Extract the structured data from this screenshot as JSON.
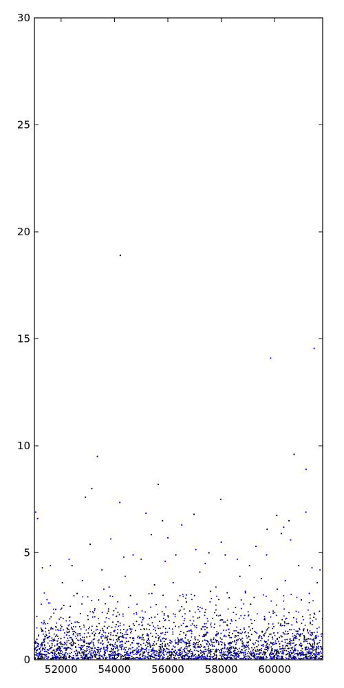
{
  "chart_data": {
    "type": "scatter",
    "title": "",
    "xlabel": "",
    "ylabel": "",
    "xlim": [
      51000,
      61800
    ],
    "ylim": [
      0,
      30
    ],
    "grid": false,
    "xticks": [
      52000,
      54000,
      56000,
      58000,
      60000
    ],
    "xtick_labels": [
      "52000",
      "54000",
      "56000",
      "58000",
      "60000"
    ],
    "yticks": [
      0,
      5,
      10,
      15,
      20,
      25,
      30
    ],
    "ytick_labels": [
      "0",
      "5",
      "10",
      "15",
      "20",
      "25",
      "30"
    ],
    "series": [
      {
        "color": "#000000",
        "points": [
          [
            54220,
            18.9
          ],
          [
            55640,
            8.2
          ],
          [
            53150,
            8.0
          ],
          [
            57980,
            7.5
          ],
          [
            52910,
            7.6
          ],
          [
            56980,
            6.8
          ],
          [
            60080,
            6.75
          ],
          [
            60730,
            9.6
          ],
          [
            60540,
            6.5
          ],
          [
            59720,
            6.1
          ],
          [
            55800,
            6.5
          ],
          [
            55380,
            5.85
          ],
          [
            53090,
            5.4
          ],
          [
            54350,
            4.8
          ],
          [
            57540,
            5.0
          ],
          [
            58150,
            4.9
          ],
          [
            59060,
            4.4
          ],
          [
            60250,
            5.9
          ],
          [
            61400,
            4.3
          ],
          [
            51300,
            4.3
          ],
          [
            52410,
            4.4
          ],
          [
            53530,
            4.2
          ],
          [
            55000,
            4.7
          ],
          [
            56300,
            4.9
          ],
          [
            57200,
            4.1
          ],
          [
            58700,
            3.9
          ],
          [
            59500,
            3.8
          ],
          [
            60900,
            4.4
          ],
          [
            61600,
            3.6
          ],
          [
            52050,
            3.6
          ],
          [
            52600,
            3.1
          ],
          [
            53800,
            3.4
          ],
          [
            54600,
            3.0
          ],
          [
            55500,
            3.5
          ],
          [
            56700,
            2.7
          ],
          [
            57600,
            3.2
          ],
          [
            58300,
            2.9
          ],
          [
            59100,
            2.6
          ],
          [
            60100,
            3.3
          ],
          [
            61000,
            2.8
          ]
        ]
      },
      {
        "color": "#0000ff",
        "points": [
          [
            59850,
            14.1
          ],
          [
            61480,
            14.55
          ],
          [
            61180,
            8.9
          ],
          [
            53360,
            9.5
          ],
          [
            54200,
            7.35
          ],
          [
            55180,
            6.85
          ],
          [
            60340,
            6.2
          ],
          [
            51050,
            6.9
          ],
          [
            51120,
            6.6
          ],
          [
            56520,
            6.3
          ],
          [
            61170,
            6.9
          ],
          [
            53860,
            5.65
          ],
          [
            56000,
            5.7
          ],
          [
            57050,
            5.15
          ],
          [
            58000,
            5.5
          ],
          [
            59300,
            5.3
          ],
          [
            60600,
            5.6
          ],
          [
            51600,
            4.4
          ],
          [
            52300,
            4.7
          ],
          [
            54700,
            4.9
          ],
          [
            55900,
            4.6
          ],
          [
            57400,
            4.5
          ],
          [
            58600,
            4.7
          ],
          [
            59700,
            4.9
          ],
          [
            61700,
            4.2
          ],
          [
            52800,
            3.7
          ],
          [
            53600,
            3.3
          ],
          [
            54400,
            3.9
          ],
          [
            55400,
            3.1
          ],
          [
            56200,
            3.6
          ],
          [
            57000,
            3.0
          ],
          [
            57800,
            3.4
          ],
          [
            58900,
            3.2
          ],
          [
            60400,
            3.7
          ],
          [
            61300,
            3.1
          ]
        ]
      }
    ],
    "density_note": "dense cloud of black and blue points between 0 and about 3.5 across the full x range"
  }
}
